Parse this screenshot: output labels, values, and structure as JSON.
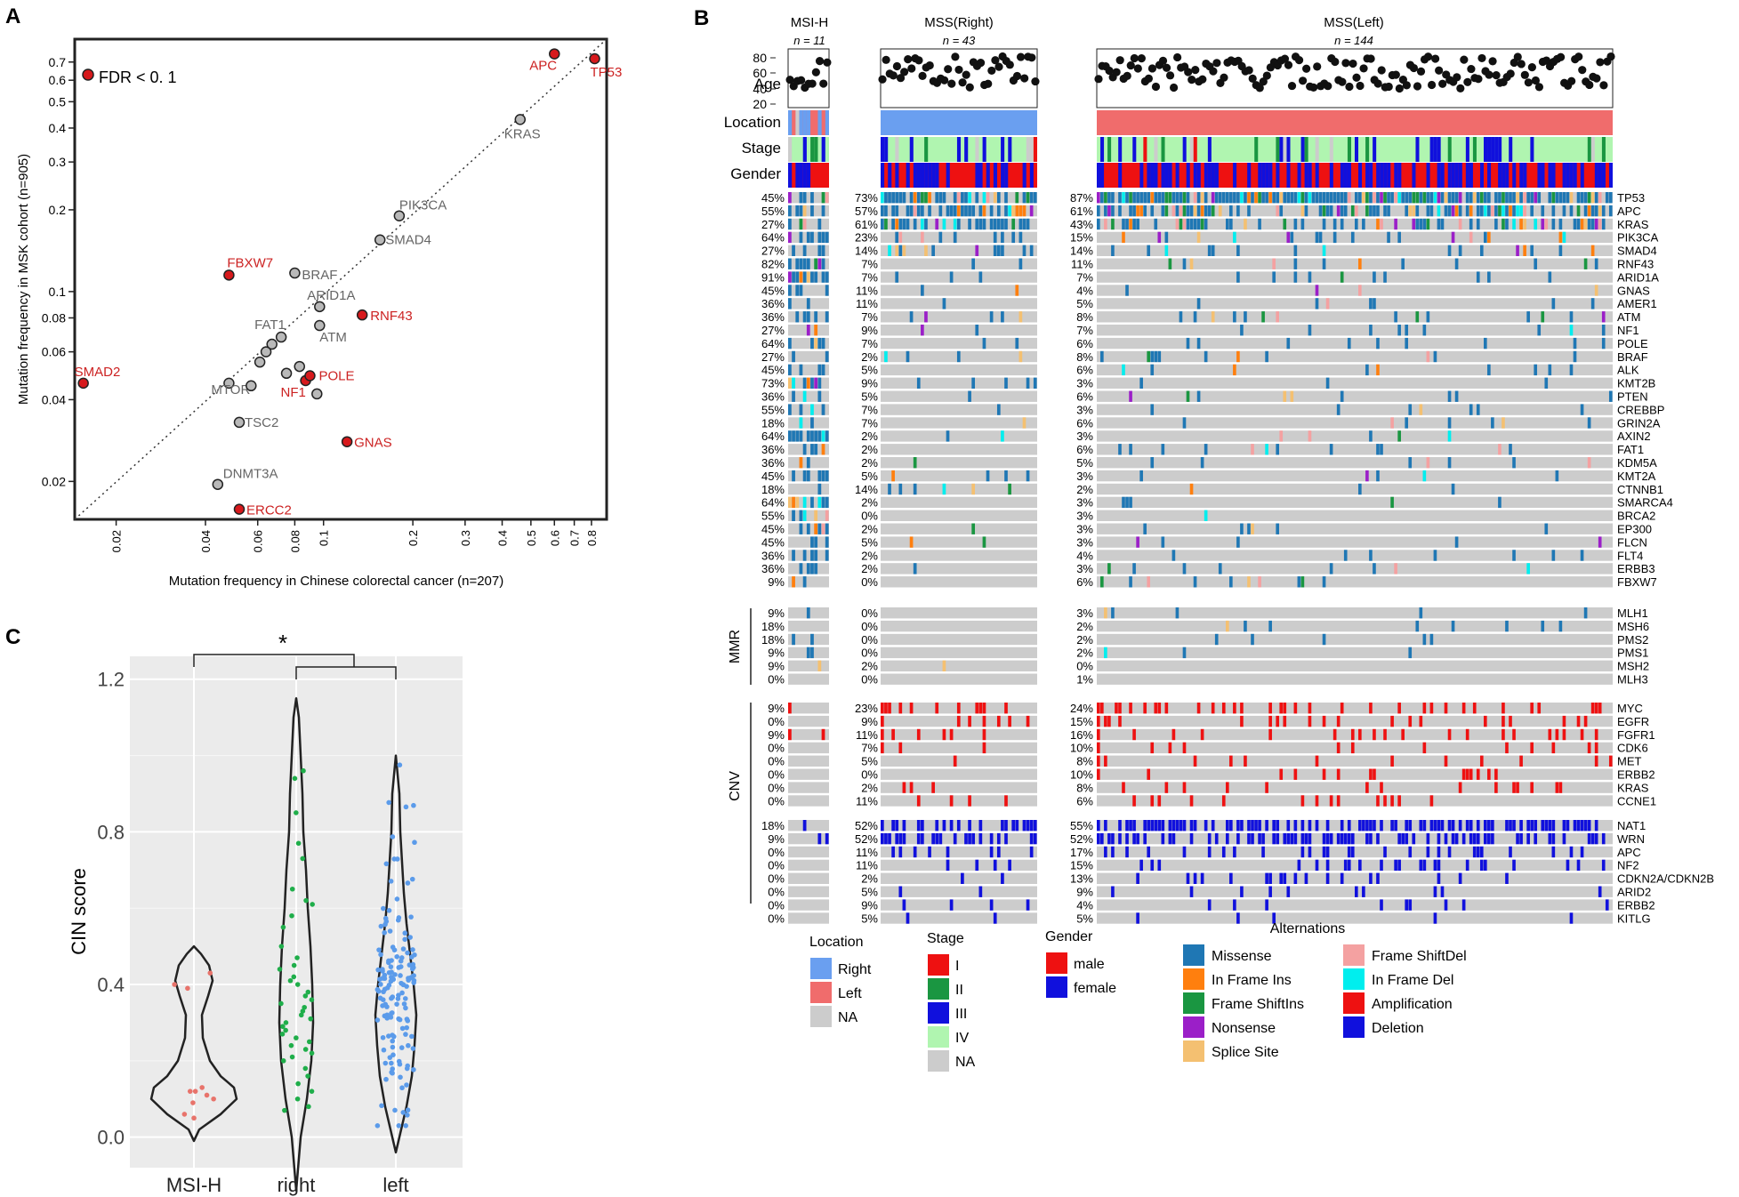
{
  "colors": {
    "red_point": "#d7191c",
    "red_text": "#cc2222",
    "gray_text": "#666666",
    "panel_bg": "#ebebeb",
    "cell_gray": "#cccccc",
    "missense": "#1f77b4",
    "frame_shift_del": "#f4a1a1",
    "in_frame_ins": "#ff7f0e",
    "in_frame_del": "#00eeee",
    "frame_shift_ins": "#1a9641",
    "amplification": "#ee1111",
    "nonsense": "#9b1fc8",
    "deletion": "#1010dd",
    "splice_site": "#f4c071",
    "loc_right": "#6a9ff0",
    "loc_left": "#f06c6c",
    "na": "#cccccc",
    "stage_I": "#ee1111",
    "stage_II": "#1a9641",
    "stage_III": "#1010dd",
    "stage_IV": "#b0f5b0",
    "male": "#ee1111",
    "female": "#1010dd",
    "msi_dot": "#e8736b",
    "right_dot": "#1fae4a",
    "left_dot": "#5b9bea"
  },
  "panels": {
    "A": "A",
    "B": "B",
    "C": "C"
  },
  "chart_data": [
    {
      "type": "scatter",
      "panel": "A",
      "title": "",
      "xlabel": "Mutation frequency in Chinese colorectal cancer (n=207)",
      "ylabel": "Mutation frequency in MSK cohort (n=905)",
      "xscale": "log",
      "yscale": "log",
      "xlim": [
        0.0145,
        0.9
      ],
      "ylim": [
        0.0145,
        0.85
      ],
      "x_ticks": [
        0.02,
        0.04,
        0.06,
        0.08,
        0.1,
        0.2,
        0.3,
        0.4,
        0.5,
        0.6,
        0.7,
        0.8
      ],
      "y_ticks": [
        0.02,
        0.04,
        0.06,
        0.08,
        0.1,
        0.2,
        0.3,
        0.4,
        0.5,
        0.6,
        0.7
      ],
      "legend": "FDR < 0. 1",
      "points": [
        {
          "label": "TP53",
          "x": 0.82,
          "y": 0.72,
          "fdr": true
        },
        {
          "label": "APC",
          "x": 0.6,
          "y": 0.75,
          "fdr": true
        },
        {
          "label": "KRAS",
          "x": 0.46,
          "y": 0.43,
          "fdr": false
        },
        {
          "label": "PIK3CA",
          "x": 0.18,
          "y": 0.19,
          "fdr": false
        },
        {
          "label": "SMAD4",
          "x": 0.155,
          "y": 0.155,
          "fdr": false
        },
        {
          "label": "FBXW7",
          "x": 0.048,
          "y": 0.115,
          "fdr": true
        },
        {
          "label": "BRAF",
          "x": 0.08,
          "y": 0.117,
          "fdr": false
        },
        {
          "label": "ARID1A",
          "x": 0.097,
          "y": 0.088,
          "fdr": false
        },
        {
          "label": "RNF43",
          "x": 0.135,
          "y": 0.082,
          "fdr": true
        },
        {
          "label": "FAT1",
          "x": 0.072,
          "y": 0.068,
          "fdr": false
        },
        {
          "label": "ATM",
          "x": 0.097,
          "y": 0.075,
          "fdr": false
        },
        {
          "label": "SMAD2",
          "x": 0.0155,
          "y": 0.046,
          "fdr": true
        },
        {
          "label": "MTOR",
          "x": 0.048,
          "y": 0.046,
          "fdr": false
        },
        {
          "label": "NF1",
          "x": 0.087,
          "y": 0.047,
          "fdr": true
        },
        {
          "label": "POLE",
          "x": 0.09,
          "y": 0.049,
          "fdr": true
        },
        {
          "label": "TSC2",
          "x": 0.052,
          "y": 0.033,
          "fdr": false
        },
        {
          "label": "GNAS",
          "x": 0.12,
          "y": 0.028,
          "fdr": true
        },
        {
          "label": "DNMT3A",
          "x": 0.044,
          "y": 0.0195,
          "fdr": false
        },
        {
          "label": "ERCC2",
          "x": 0.052,
          "y": 0.0158,
          "fdr": true
        },
        {
          "label": "",
          "x": 0.067,
          "y": 0.064,
          "fdr": false
        },
        {
          "label": "",
          "x": 0.064,
          "y": 0.06,
          "fdr": false
        },
        {
          "label": "",
          "x": 0.061,
          "y": 0.055,
          "fdr": false
        },
        {
          "label": "",
          "x": 0.075,
          "y": 0.05,
          "fdr": false
        },
        {
          "label": "",
          "x": 0.083,
          "y": 0.053,
          "fdr": false
        },
        {
          "label": "",
          "x": 0.057,
          "y": 0.045,
          "fdr": false
        },
        {
          "label": "",
          "x": 0.095,
          "y": 0.042,
          "fdr": false
        }
      ]
    },
    {
      "type": "oncoprint",
      "panel": "B",
      "groups": [
        {
          "name": "MSI-H",
          "n": "n = 11",
          "samples": 11
        },
        {
          "name": "MSS(Right)",
          "n": "n = 43",
          "samples": 43
        },
        {
          "name": "MSS(Left)",
          "n": "n = 144",
          "samples": 144
        }
      ],
      "annotation_labels": [
        "Age",
        "Location",
        "Stage",
        "Gender"
      ],
      "age_ticks": [
        80,
        60,
        40,
        20
      ],
      "sections": [
        {
          "name": "",
          "genes": [
            "TP53",
            "APC",
            "KRAS",
            "PIK3CA",
            "SMAD4",
            "RNF43",
            "ARID1A",
            "GNAS",
            "AMER1",
            "ATM",
            "NF1",
            "POLE",
            "BRAF",
            "ALK",
            "KMT2B",
            "PTEN",
            "CREBBP",
            "GRIN2A",
            "AXIN2",
            "FAT1",
            "KDM5A",
            "KMT2A",
            "CTNNB1",
            "SMARCA4",
            "BRCA2",
            "EP300",
            "FLCN",
            "FLT4",
            "ERBB3",
            "FBXW7"
          ],
          "pct_msi": [
            "45%",
            "55%",
            "27%",
            "64%",
            "27%",
            "82%",
            "91%",
            "45%",
            "36%",
            "36%",
            "27%",
            "64%",
            "27%",
            "45%",
            "73%",
            "36%",
            "55%",
            "18%",
            "64%",
            "36%",
            "36%",
            "45%",
            "18%",
            "64%",
            "55%",
            "45%",
            "45%",
            "36%",
            "36%",
            "9%"
          ],
          "pct_right": [
            "73%",
            "57%",
            "61%",
            "23%",
            "14%",
            "7%",
            "7%",
            "11%",
            "11%",
            "7%",
            "9%",
            "7%",
            "2%",
            "5%",
            "9%",
            "5%",
            "7%",
            "7%",
            "2%",
            "2%",
            "2%",
            "5%",
            "14%",
            "2%",
            "0%",
            "2%",
            "5%",
            "2%",
            "2%",
            "0%"
          ],
          "pct_left": [
            "87%",
            "61%",
            "43%",
            "15%",
            "14%",
            "11%",
            "7%",
            "4%",
            "5%",
            "8%",
            "7%",
            "6%",
            "8%",
            "6%",
            "3%",
            "6%",
            "3%",
            "6%",
            "3%",
            "6%",
            "5%",
            "3%",
            "2%",
            "3%",
            "3%",
            "3%",
            "3%",
            "4%",
            "3%",
            "6%"
          ]
        },
        {
          "name": "MMR",
          "genes": [
            "MLH1",
            "MSH6",
            "PMS2",
            "PMS1",
            "MSH2",
            "MLH3"
          ],
          "pct_msi": [
            "9%",
            "18%",
            "18%",
            "9%",
            "9%",
            "0%"
          ],
          "pct_right": [
            "0%",
            "0%",
            "0%",
            "0%",
            "2%",
            "0%"
          ],
          "pct_left": [
            "3%",
            "2%",
            "2%",
            "2%",
            "0%",
            "1%"
          ]
        },
        {
          "name": "CNV",
          "genes": [
            "MYC",
            "EGFR",
            "FGFR1",
            "CDK6",
            "MET",
            "ERBB2",
            "KRAS",
            "CCNE1"
          ],
          "pct_msi": [
            "9%",
            "0%",
            "9%",
            "0%",
            "0%",
            "0%",
            "0%",
            "0%"
          ],
          "pct_right": [
            "23%",
            "9%",
            "11%",
            "7%",
            "5%",
            "0%",
            "2%",
            "11%"
          ],
          "pct_left": [
            "24%",
            "15%",
            "16%",
            "10%",
            "8%",
            "10%",
            "8%",
            "6%"
          ]
        },
        {
          "name": "",
          "genes": [
            "NAT1",
            "WRN",
            "APC",
            "NF2",
            "CDKN2A/CDKN2B",
            "ARID2",
            "ERBB2",
            "KITLG"
          ],
          "pct_msi": [
            "18%",
            "9%",
            "0%",
            "0%",
            "0%",
            "0%",
            "0%",
            "0%"
          ],
          "pct_right": [
            "52%",
            "52%",
            "11%",
            "11%",
            "2%",
            "5%",
            "9%",
            "5%"
          ],
          "pct_left": [
            "55%",
            "52%",
            "17%",
            "15%",
            "13%",
            "9%",
            "4%",
            "5%"
          ]
        }
      ],
      "legends": {
        "location": {
          "title": "Location",
          "items": [
            "Right",
            "Left",
            "NA"
          ]
        },
        "stage": {
          "title": "Stage",
          "items": [
            "I",
            "II",
            "III",
            "IV",
            "NA"
          ]
        },
        "gender": {
          "title": "Gender",
          "items": [
            "male",
            "female"
          ]
        },
        "alterations": {
          "title": "Alternations",
          "items": [
            "Missense",
            "Frame ShiftDel",
            "In Frame Ins",
            "In Frame Del",
            "Frame ShiftIns",
            "Amplification",
            "Nonsense",
            "Deletion",
            "Splice Site"
          ]
        }
      }
    },
    {
      "type": "violin",
      "panel": "C",
      "ylabel": "CIN score",
      "categories": [
        "MSI-H",
        "right",
        "left"
      ],
      "ylim": [
        -0.08,
        1.26
      ],
      "y_ticks": [
        0.0,
        0.4,
        0.8,
        1.2
      ],
      "y_tick_labels": [
        "0.0",
        "0.4",
        "0.8",
        "1.2"
      ],
      "significance": "*",
      "series": [
        {
          "name": "MSI-H",
          "values": [
            0.43,
            0.4,
            0.39,
            0.13,
            0.12,
            0.12,
            0.11,
            0.1,
            0.09,
            0.06,
            0.05
          ]
        },
        {
          "name": "right",
          "values": [
            0.96,
            0.94,
            0.85,
            0.77,
            0.73,
            0.65,
            0.62,
            0.61,
            0.58,
            0.55,
            0.5,
            0.47,
            0.45,
            0.44,
            0.42,
            0.41,
            0.4,
            0.38,
            0.37,
            0.36,
            0.35,
            0.34,
            0.33,
            0.32,
            0.31,
            0.3,
            0.29,
            0.28,
            0.27,
            0.26,
            0.25,
            0.24,
            0.23,
            0.22,
            0.21,
            0.2,
            0.18,
            0.16,
            0.14,
            0.12,
            0.1,
            0.08,
            0.07
          ]
        }
      ]
    }
  ]
}
